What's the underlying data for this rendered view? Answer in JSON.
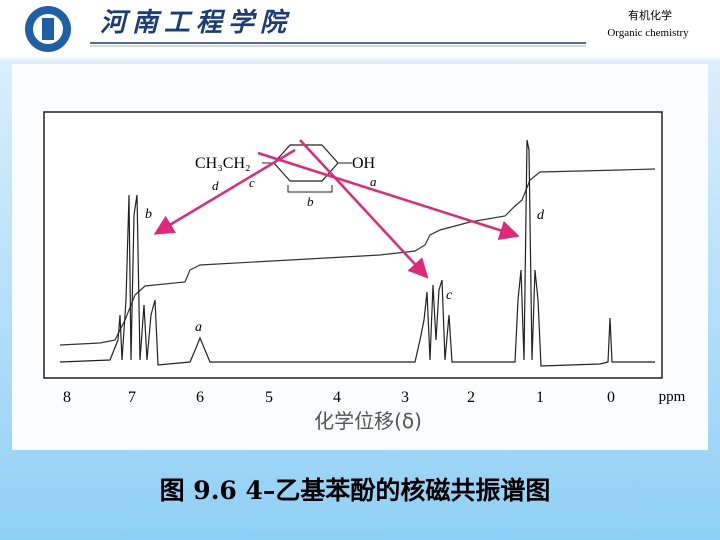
{
  "header": {
    "school": "河南工程学院",
    "course": "有机化学",
    "course_en": "Organic chemistry"
  },
  "figure": {
    "structure": {
      "left": "CH₃CH₂",
      "right": "OH",
      "labels": [
        "d",
        "c",
        "b",
        "a"
      ]
    },
    "peak_labels": [
      "b",
      "a",
      "c",
      "d"
    ],
    "x_tick_labels": [
      "8",
      "7",
      "6",
      "5",
      "4",
      "3",
      "2",
      "1",
      "0"
    ],
    "x_unit": "ppm",
    "x_title": "化学位移(δ)"
  },
  "caption": "图 9.6  4–乙基苯酚的核磁共振谱图"
}
